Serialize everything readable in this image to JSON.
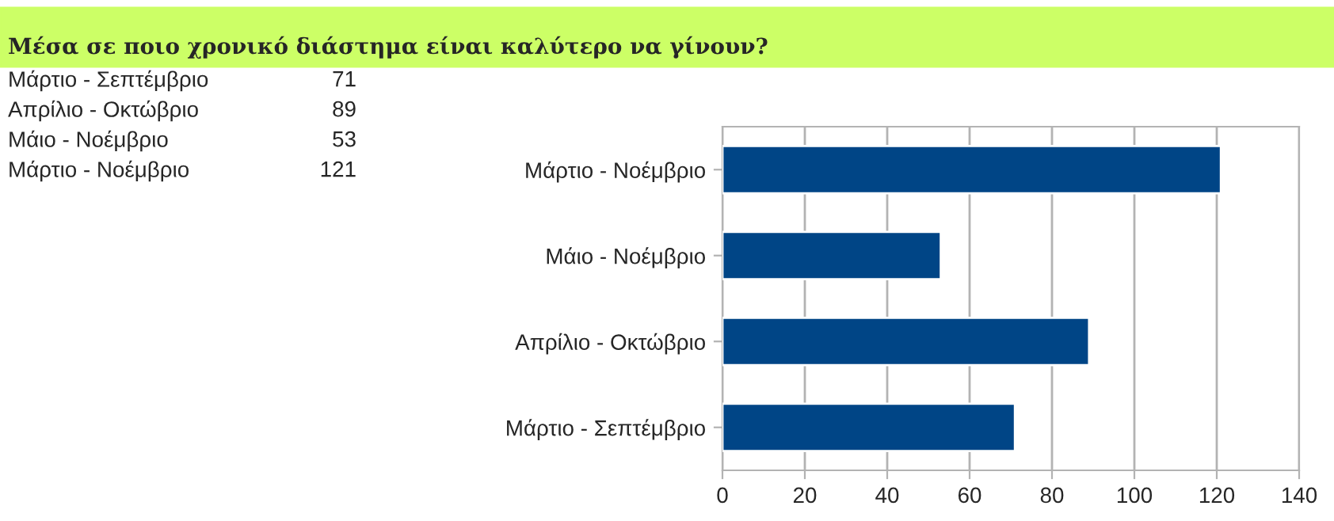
{
  "chart_data": [
    {
      "type": "other",
      "title": "Μέσα σε ποιο χρονικό διάστημα είναι καλύτερο να γίνουν?",
      "annotations": [
        "Μάρτιο - Σεπτέμβριο",
        "71",
        "Απρίλιο - Οκτώβριο",
        "89",
        "Μάιο - Νοέμβριο",
        "53",
        "Μάρτιο - Νοέμβριο",
        "121"
      ]
    },
    {
      "type": "bar",
      "orientation": "horizontal",
      "categories": [
        "Μάρτιο - Νοέμβριο",
        "Μάιο - Νοέμβριο",
        "Απρίλιο - Οκτώβριο",
        "Μάρτιο - Σεπτέμβριο"
      ],
      "values": [
        121,
        53,
        89,
        71
      ],
      "color": "#004586",
      "xlim": [
        0,
        140
      ],
      "xticks": [
        0,
        20,
        40,
        60,
        80,
        100,
        120,
        140
      ],
      "grid": "x"
    }
  ]
}
